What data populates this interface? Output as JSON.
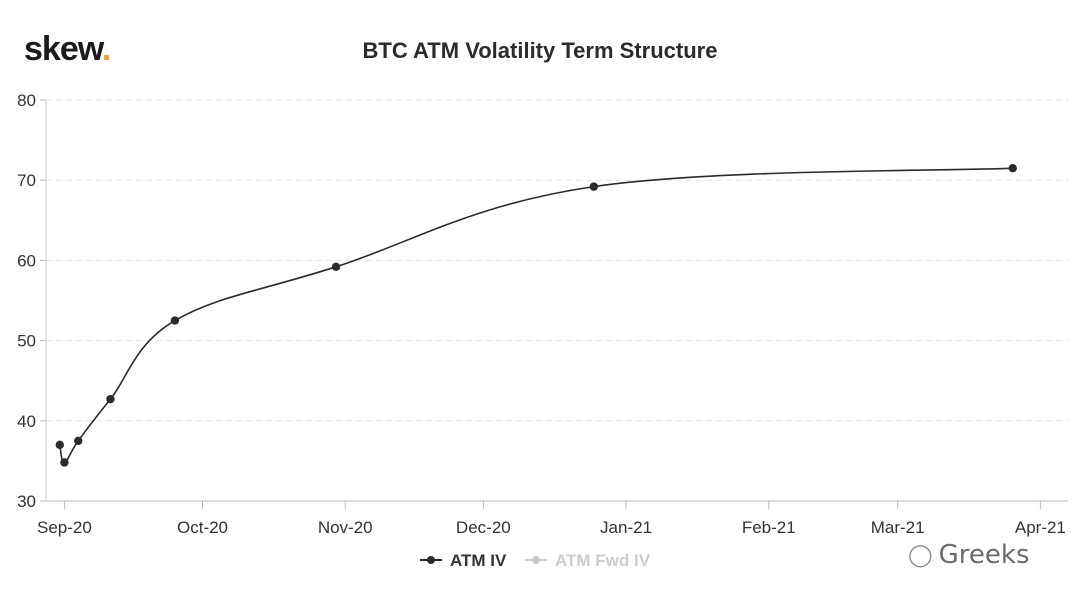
{
  "logo": {
    "text": "skew",
    "dot": "."
  },
  "watermark": {
    "text": "Greeks",
    "icon": "wechat-icon"
  },
  "chart_data": {
    "type": "line",
    "title": "BTC ATM Volatility Term Structure",
    "xlabel": "",
    "ylabel": "",
    "x_axis": "date",
    "xlim": [
      "2020-08-28",
      "2021-04-07"
    ],
    "ylim": [
      30,
      80
    ],
    "y_ticks": [
      30,
      40,
      50,
      60,
      70,
      80
    ],
    "x_ticks": [
      {
        "date": "2020-09-01",
        "label": "Sep-20"
      },
      {
        "date": "2020-10-01",
        "label": "Oct-20"
      },
      {
        "date": "2020-11-01",
        "label": "Nov-20"
      },
      {
        "date": "2020-12-01",
        "label": "Dec-20"
      },
      {
        "date": "2021-01-01",
        "label": "Jan-21"
      },
      {
        "date": "2021-02-01",
        "label": "Feb-21"
      },
      {
        "date": "2021-03-01",
        "label": "Mar-21"
      },
      {
        "date": "2021-04-01",
        "label": "Apr-21"
      }
    ],
    "grid": "horizontal-dashed",
    "legend_position": "bottom-center",
    "series": [
      {
        "name": "ATM IV",
        "color": "#2b2b2b",
        "visible": true,
        "points": [
          {
            "x": "2020-08-31",
            "y": 37.0
          },
          {
            "x": "2020-09-01",
            "y": 34.8
          },
          {
            "x": "2020-09-04",
            "y": 37.5
          },
          {
            "x": "2020-09-11",
            "y": 42.7
          },
          {
            "x": "2020-09-25",
            "y": 52.5
          },
          {
            "x": "2020-10-30",
            "y": 59.2
          },
          {
            "x": "2020-12-25",
            "y": 69.2
          },
          {
            "x": "2021-03-26",
            "y": 71.5
          }
        ]
      },
      {
        "name": "ATM Fwd IV",
        "color": "#cccccc",
        "visible": false,
        "points": []
      }
    ]
  }
}
